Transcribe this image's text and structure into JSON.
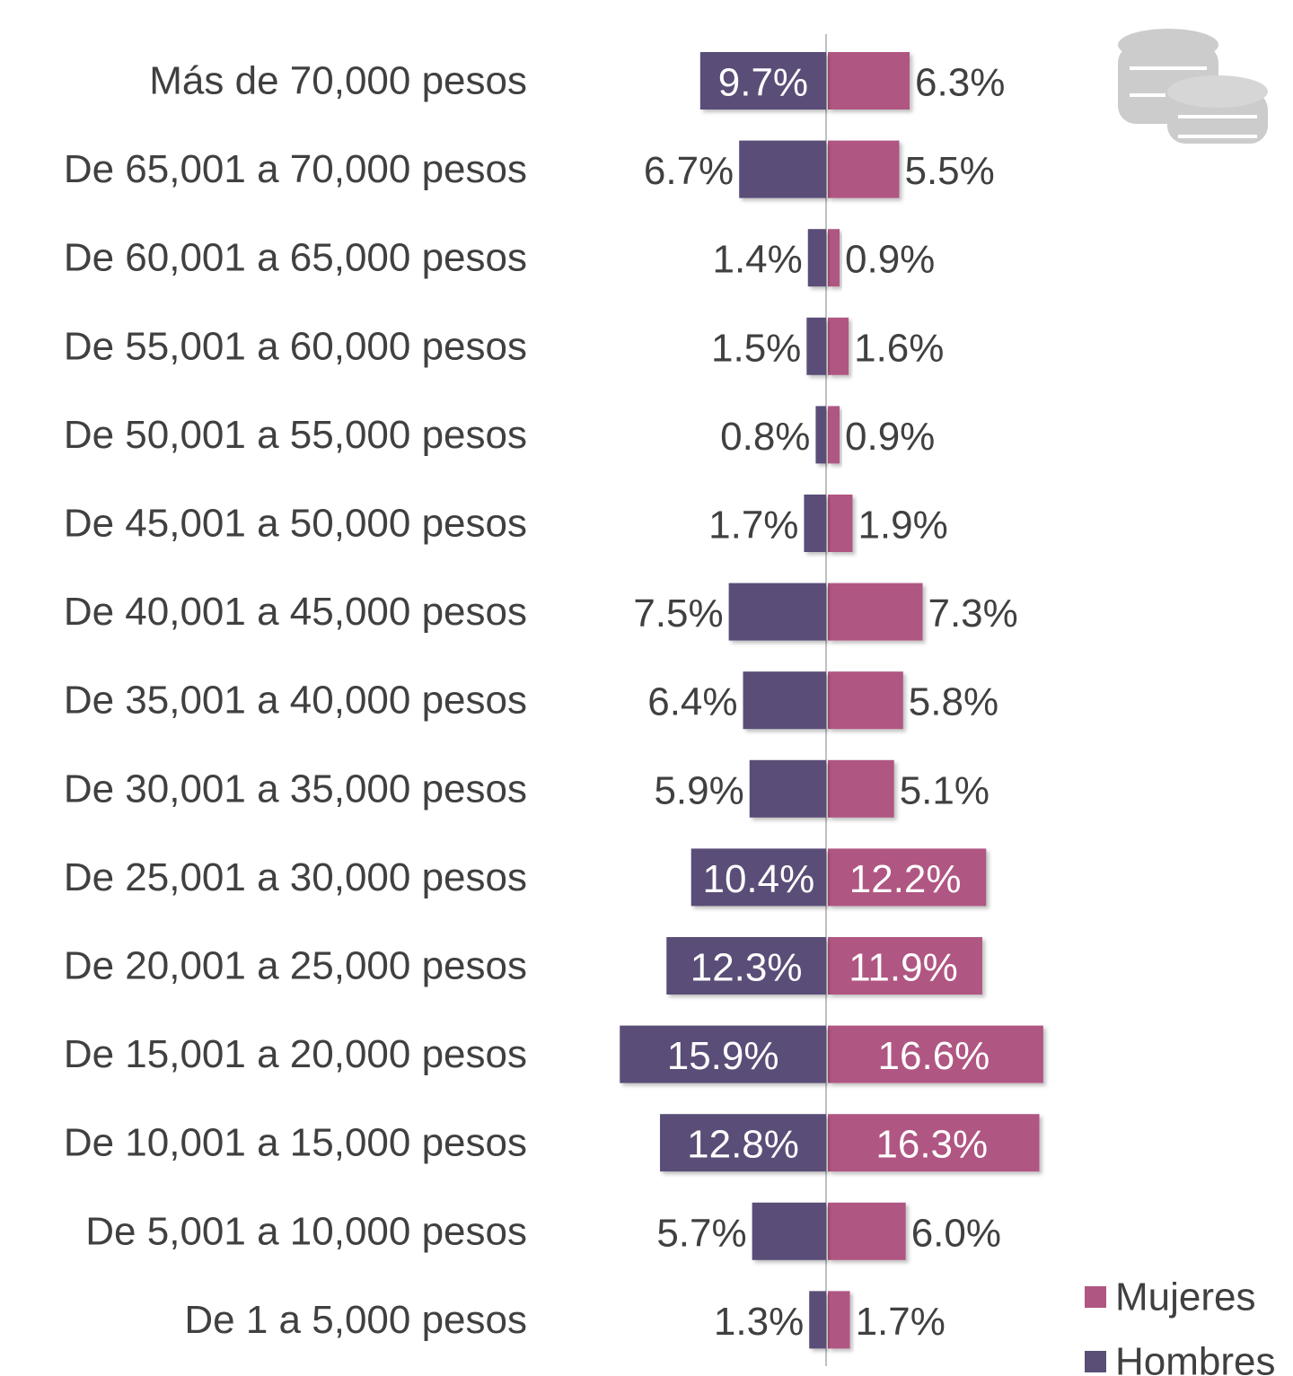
{
  "chart_data": {
    "type": "diverging_bar",
    "categories": [
      "Más de 70,000 pesos",
      "De 65,001 a 70,000 pesos",
      "De 60,001 a 65,000 pesos",
      "De 55,001 a 60,000 pesos",
      "De 50,001 a 55,000 pesos",
      "De 45,001 a 50,000 pesos",
      "De 40,001 a 45,000 pesos",
      "De 35,001 a 40,000 pesos",
      "De 30,001 a 35,000 pesos",
      "De 25,001 a 30,000 pesos",
      "De 20,001 a 25,000 pesos",
      "De 15,001 a 20,000 pesos",
      "De 10,001 a 15,000 pesos",
      "De 5,001 a 10,000 pesos",
      "De 1 a 5,000 pesos"
    ],
    "series": [
      {
        "name": "Mujeres",
        "color": "#b05682",
        "values": [
          6.3,
          5.5,
          0.9,
          1.6,
          0.9,
          1.9,
          7.3,
          5.8,
          5.1,
          12.2,
          11.9,
          16.6,
          16.3,
          6.0,
          1.7
        ],
        "value_labels": [
          "6.3%",
          "5.5%",
          "0.9%",
          "1.6%",
          "0.9%",
          "1.9%",
          "7.3%",
          "5.8%",
          "5.1%",
          "12.2%",
          "11.9%",
          "16.6%",
          "16.3%",
          "6.0%",
          "1.7%"
        ]
      },
      {
        "name": "Hombres",
        "color": "#5a4e77",
        "values": [
          9.7,
          6.7,
          1.4,
          1.5,
          0.8,
          1.7,
          7.5,
          6.4,
          5.9,
          10.4,
          12.3,
          15.9,
          12.8,
          5.7,
          1.3
        ],
        "value_labels": [
          "9.7%",
          "6.7%",
          "1.4%",
          "1.5%",
          "0.8%",
          "1.7%",
          "7.5%",
          "6.4%",
          "5.9%",
          "10.4%",
          "12.3%",
          "15.9%",
          "12.8%",
          "5.7%",
          "1.3%"
        ]
      }
    ],
    "legend": "bottom-right"
  }
}
